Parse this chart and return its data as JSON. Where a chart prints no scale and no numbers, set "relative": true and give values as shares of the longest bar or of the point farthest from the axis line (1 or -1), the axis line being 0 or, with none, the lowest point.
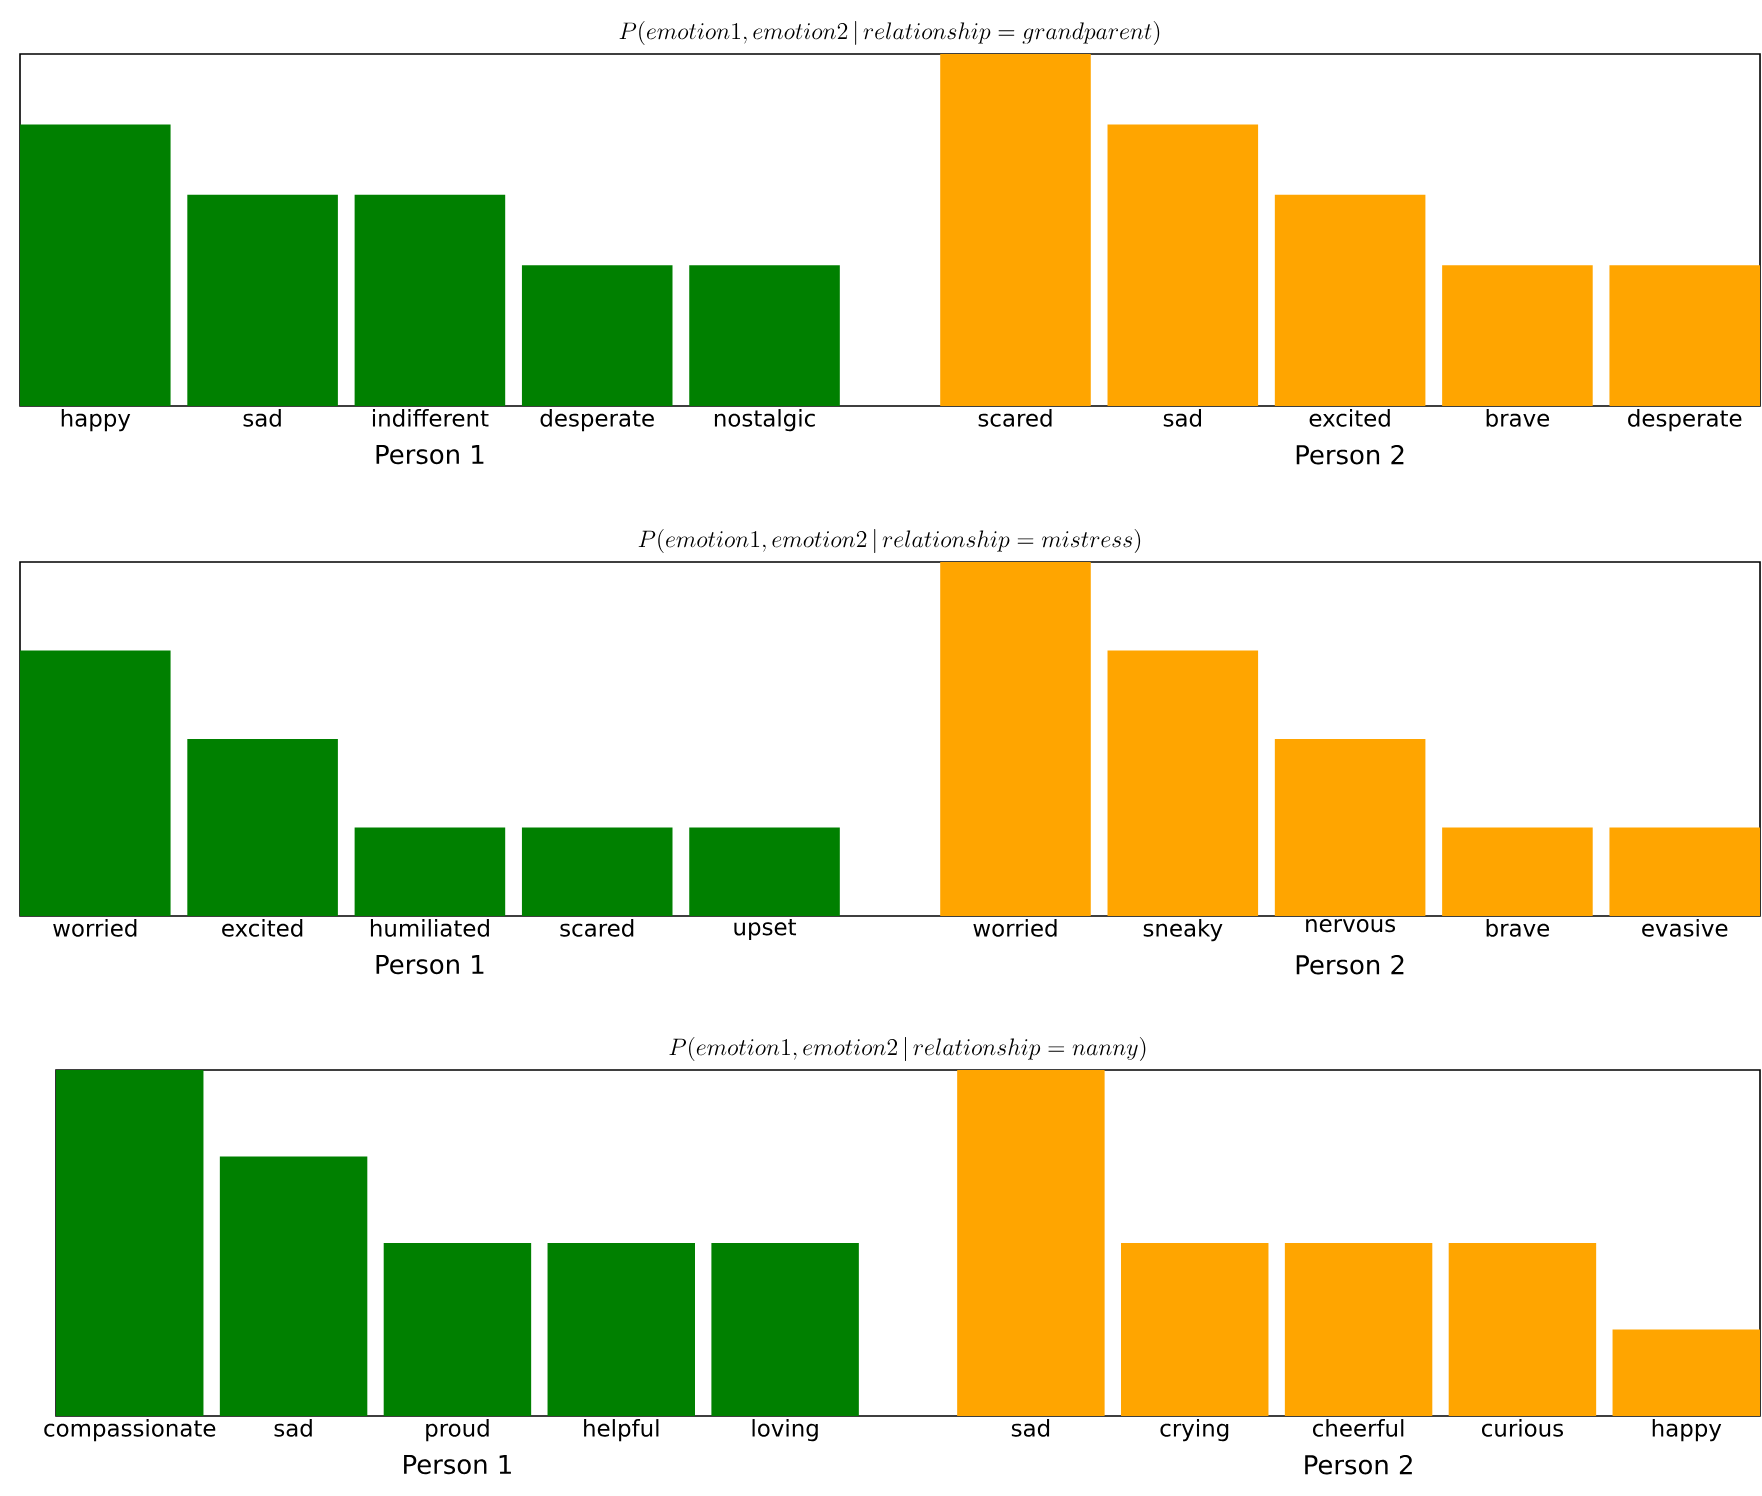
{
  "chart_data": [
    {
      "type": "bar",
      "title": "P(emotion1, emotion2 \\,\\mathbf{|}\\, relationship = grandparent)",
      "relative": true,
      "categories": [
        "happy",
        "sad",
        "indifferent",
        "desperate",
        "nostalgic",
        "scared",
        "sad",
        "excited",
        "brave",
        "desperate"
      ],
      "values": [
        0.8,
        0.6,
        0.6,
        0.4,
        0.4,
        1,
        0.8,
        0.6,
        0.4,
        0.4
      ],
      "colors": [
        "#008000",
        "#008000",
        "#008000",
        "#008000",
        "#008000",
        "#ffa500",
        "#ffa500",
        "#ffa500",
        "#ffa500",
        "#ffa500"
      ],
      "annotations": [
        "Person 1",
        "Person 2"
      ]
    },
    {
      "type": "bar",
      "title": "P(emotion1, emotion2 \\,\\mathbf{|}\\, relationship = mistress)",
      "relative": true,
      "categories": [
        "worried",
        "excited",
        "humiliated",
        "scared",
        "upset",
        "worried",
        "sneaky",
        "nervous",
        "brave",
        "evasive"
      ],
      "values": [
        0.75,
        0.5,
        0.25,
        0.25,
        0.25,
        1,
        0.75,
        0.5,
        0.25,
        0.25
      ],
      "colors": [
        "#008000",
        "#008000",
        "#008000",
        "#008000",
        "#008000",
        "#ffa500",
        "#ffa500",
        "#ffa500",
        "#ffa500",
        "#ffa500"
      ],
      "annotations": [
        "Person 1",
        "Person 2"
      ]
    },
    {
      "type": "bar",
      "title": "P(emotion1, emotion2 \\,\\mathbf{|}\\, relationship = nanny)",
      "relative": true,
      "categories": [
        "compassionate",
        "sad",
        "proud",
        "helpful",
        "loving",
        "sad",
        "crying",
        "cheerful",
        "curious",
        "happy"
      ],
      "values": [
        1,
        0.75,
        0.5,
        0.5,
        0.5,
        1,
        0.5,
        0.5,
        0.5,
        0.25
      ],
      "colors": [
        "#008000",
        "#008000",
        "#008000",
        "#008000",
        "#008000",
        "#ffa500",
        "#ffa500",
        "#ffa500",
        "#ffa500",
        "#ffa500"
      ],
      "annotations": [
        "Person 1",
        "Person 2"
      ]
    }
  ]
}
